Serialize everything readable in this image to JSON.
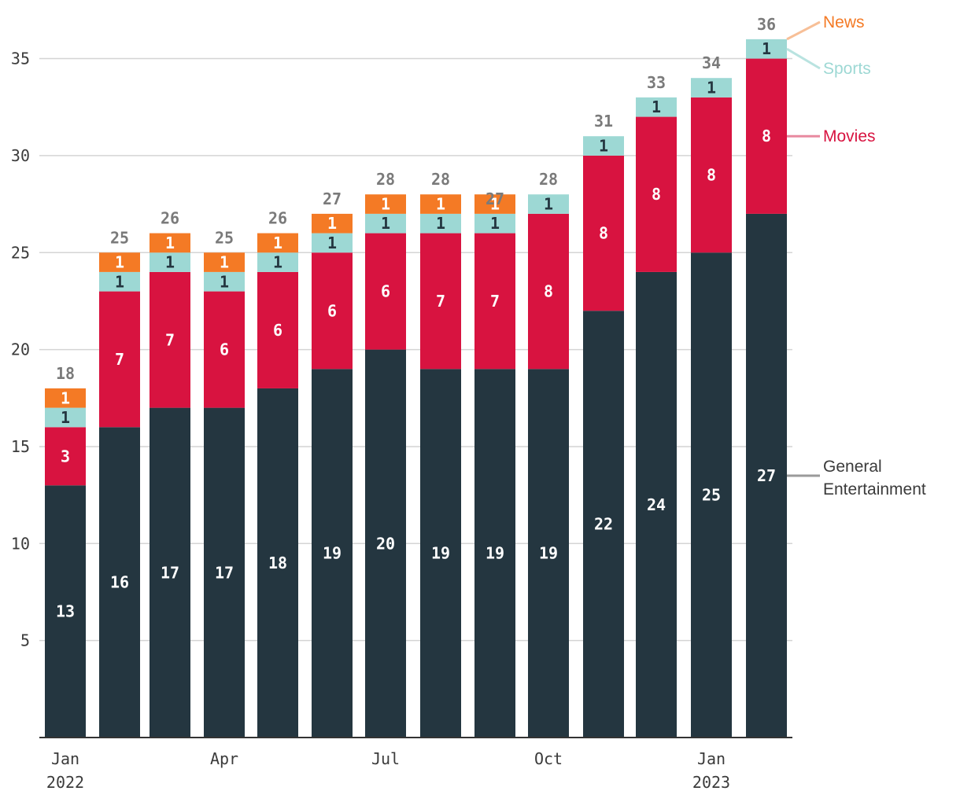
{
  "chart_data": {
    "type": "bar",
    "stacked": true,
    "title": "",
    "xlabel": "",
    "ylabel": "",
    "ylim": [
      0,
      36
    ],
    "grid": true,
    "y_ticks": [
      5,
      10,
      15,
      20,
      25,
      30,
      35
    ],
    "categories": [
      "Jan 2022",
      "Feb 2022",
      "Mar 2022",
      "Apr 2022",
      "May 2022",
      "Jun 2022",
      "Jul 2022",
      "Aug 2022",
      "Sep 2022",
      "Oct 2022",
      "Nov 2022",
      "Dec 2022",
      "Jan 2023",
      "Feb 2023"
    ],
    "x_tick_labels": [
      {
        "index": 0,
        "line1": "Jan",
        "line2": "2022"
      },
      {
        "index": 3,
        "line1": "Apr",
        "line2": ""
      },
      {
        "index": 6,
        "line1": "Jul",
        "line2": ""
      },
      {
        "index": 9,
        "line1": "Oct",
        "line2": ""
      },
      {
        "index": 12,
        "line1": "Jan",
        "line2": "2023"
      }
    ],
    "series": [
      {
        "name": "General Entertainment",
        "color": "#243640",
        "label_color": "#ffffff",
        "values": [
          13,
          16,
          17,
          17,
          18,
          19,
          20,
          19,
          19,
          19,
          22,
          24,
          25,
          27
        ]
      },
      {
        "name": "Movies",
        "color": "#d81340",
        "label_color": "#ffffff",
        "values": [
          3,
          7,
          7,
          6,
          6,
          6,
          6,
          7,
          7,
          8,
          8,
          8,
          8,
          8
        ]
      },
      {
        "name": "Sports",
        "color": "#9dd8d4",
        "label_color": "#243640",
        "values": [
          1,
          1,
          1,
          1,
          1,
          1,
          1,
          1,
          1,
          1,
          1,
          1,
          1,
          1
        ]
      },
      {
        "name": "News",
        "color": "#f47a25",
        "label_color": "#ffffff",
        "values": [
          1,
          1,
          1,
          1,
          1,
          1,
          1,
          1,
          1,
          0,
          0,
          0,
          0,
          0
        ]
      }
    ],
    "totals": [
      18,
      25,
      26,
      25,
      26,
      27,
      28,
      28,
      27,
      28,
      31,
      33,
      34,
      36
    ],
    "legend": [
      {
        "line1": "News",
        "line2": "",
        "color": "#f47a25",
        "line_color": "#f7bf97"
      },
      {
        "line1": "Sports",
        "line2": "",
        "color": "#9dd8d4",
        "line_color": "#b9e3e0"
      },
      {
        "line1": "Movies",
        "line2": "",
        "color": "#d81340",
        "line_color": "#e88aa0"
      },
      {
        "line1": "General",
        "line2": "Entertainment",
        "color": "#3b3b3b",
        "line_color": "#9a9a9a"
      }
    ],
    "legend_placement": "right"
  }
}
